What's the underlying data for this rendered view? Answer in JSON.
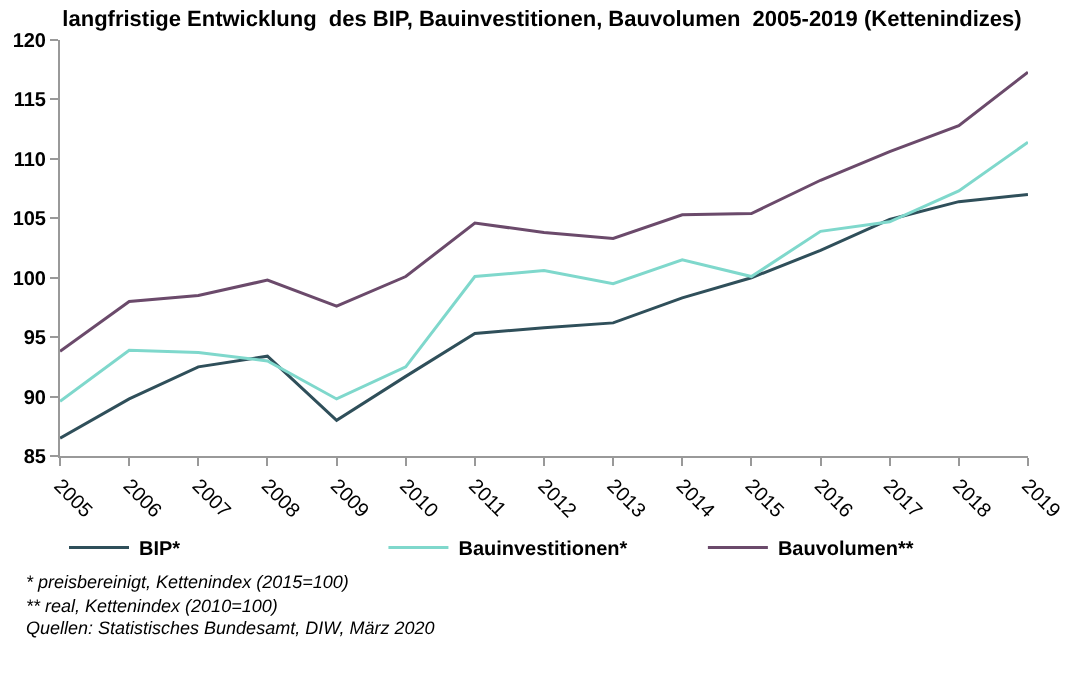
{
  "chart_data": {
    "type": "line",
    "title": "langfristige Entwicklung  des BIP, Bauinvestitionen, Bauvolumen  2005-2019 (Kettenindizes)",
    "categories": [
      "2005",
      "2006",
      "2007",
      "2008",
      "2009",
      "2010",
      "2011",
      "2012",
      "2013",
      "2014",
      "2015",
      "2016",
      "2017",
      "2018",
      "2019"
    ],
    "series": [
      {
        "name": "BIP*",
        "color": "#2f4f5a",
        "values": [
          86.5,
          89.8,
          92.5,
          93.4,
          88.0,
          91.7,
          95.3,
          95.8,
          96.2,
          98.3,
          100.0,
          102.3,
          104.9,
          106.4,
          107.0
        ]
      },
      {
        "name": "Bauinvestitionen*",
        "color": "#7fd8cc",
        "values": [
          89.6,
          93.9,
          93.7,
          93.0,
          89.8,
          92.5,
          100.1,
          100.6,
          99.5,
          101.5,
          100.1,
          103.9,
          104.7,
          107.3,
          111.4
        ]
      },
      {
        "name": "Bauvolumen**",
        "color": "#6b4a6b",
        "values": [
          93.8,
          98.0,
          98.5,
          99.8,
          97.6,
          100.1,
          104.6,
          103.8,
          103.3,
          105.3,
          105.4,
          108.2,
          110.6,
          112.8,
          117.3
        ]
      }
    ],
    "ylim": [
      85,
      120
    ],
    "yticks": [
      85,
      90,
      95,
      100,
      105,
      110,
      115,
      120
    ],
    "grid": false,
    "legend": "bottom",
    "marker": "none",
    "line_style": "solid",
    "annotations": [
      "* preisbereinigt, Kettenindex (2015=100)",
      "** real, Kettenindex (2010=100)",
      "Quellen: Statistisches Bundesamt, DIW, März 2020"
    ]
  }
}
